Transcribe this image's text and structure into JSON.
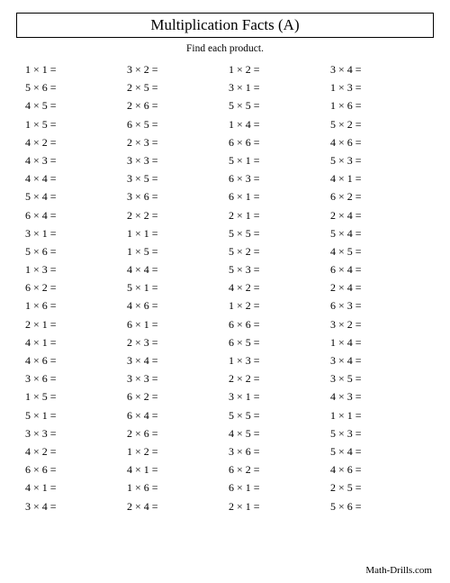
{
  "title": "Multiplication Facts (A)",
  "subtitle": "Find each product.",
  "footer": "Math-Drills.com",
  "mult_sign": "×",
  "eq_sign": "=",
  "problems": [
    [
      [
        1,
        1
      ],
      [
        3,
        2
      ],
      [
        1,
        2
      ],
      [
        3,
        4
      ]
    ],
    [
      [
        5,
        6
      ],
      [
        2,
        5
      ],
      [
        3,
        1
      ],
      [
        1,
        3
      ]
    ],
    [
      [
        4,
        5
      ],
      [
        2,
        6
      ],
      [
        5,
        5
      ],
      [
        1,
        6
      ]
    ],
    [
      [
        1,
        5
      ],
      [
        6,
        5
      ],
      [
        1,
        4
      ],
      [
        5,
        2
      ]
    ],
    [
      [
        4,
        2
      ],
      [
        2,
        3
      ],
      [
        6,
        6
      ],
      [
        4,
        6
      ]
    ],
    [
      [
        4,
        3
      ],
      [
        3,
        3
      ],
      [
        5,
        1
      ],
      [
        5,
        3
      ]
    ],
    [
      [
        4,
        4
      ],
      [
        3,
        5
      ],
      [
        6,
        3
      ],
      [
        4,
        1
      ]
    ],
    [
      [
        5,
        4
      ],
      [
        3,
        6
      ],
      [
        6,
        1
      ],
      [
        6,
        2
      ]
    ],
    [
      [
        6,
        4
      ],
      [
        2,
        2
      ],
      [
        2,
        1
      ],
      [
        2,
        4
      ]
    ],
    [
      [
        3,
        1
      ],
      [
        1,
        1
      ],
      [
        5,
        5
      ],
      [
        5,
        4
      ]
    ],
    [
      [
        5,
        6
      ],
      [
        1,
        5
      ],
      [
        5,
        2
      ],
      [
        4,
        5
      ]
    ],
    [
      [
        1,
        3
      ],
      [
        4,
        4
      ],
      [
        5,
        3
      ],
      [
        6,
        4
      ]
    ],
    [
      [
        6,
        2
      ],
      [
        5,
        1
      ],
      [
        4,
        2
      ],
      [
        2,
        4
      ]
    ],
    [
      [
        1,
        6
      ],
      [
        4,
        6
      ],
      [
        1,
        2
      ],
      [
        6,
        3
      ]
    ],
    [
      [
        2,
        1
      ],
      [
        6,
        1
      ],
      [
        6,
        6
      ],
      [
        3,
        2
      ]
    ],
    [
      [
        4,
        1
      ],
      [
        2,
        3
      ],
      [
        6,
        5
      ],
      [
        1,
        4
      ]
    ],
    [
      [
        4,
        6
      ],
      [
        3,
        4
      ],
      [
        1,
        3
      ],
      [
        3,
        4
      ]
    ],
    [
      [
        3,
        6
      ],
      [
        3,
        3
      ],
      [
        2,
        2
      ],
      [
        3,
        5
      ]
    ],
    [
      [
        1,
        5
      ],
      [
        6,
        2
      ],
      [
        3,
        1
      ],
      [
        4,
        3
      ]
    ],
    [
      [
        5,
        1
      ],
      [
        6,
        4
      ],
      [
        5,
        5
      ],
      [
        1,
        1
      ]
    ],
    [
      [
        3,
        3
      ],
      [
        2,
        6
      ],
      [
        4,
        5
      ],
      [
        5,
        3
      ]
    ],
    [
      [
        4,
        2
      ],
      [
        1,
        2
      ],
      [
        3,
        6
      ],
      [
        5,
        4
      ]
    ],
    [
      [
        6,
        6
      ],
      [
        4,
        1
      ],
      [
        6,
        2
      ],
      [
        4,
        6
      ]
    ],
    [
      [
        4,
        1
      ],
      [
        1,
        6
      ],
      [
        6,
        1
      ],
      [
        2,
        5
      ]
    ],
    [
      [
        3,
        4
      ],
      [
        2,
        4
      ],
      [
        2,
        1
      ],
      [
        5,
        6
      ]
    ]
  ],
  "style": {
    "background_color": "#ffffff",
    "text_color": "#000000",
    "border_color": "#000000",
    "title_fontsize": 17,
    "subtitle_fontsize": 11.5,
    "cell_fontsize": 12,
    "footer_fontsize": 11,
    "columns": 4,
    "rows": 25
  }
}
